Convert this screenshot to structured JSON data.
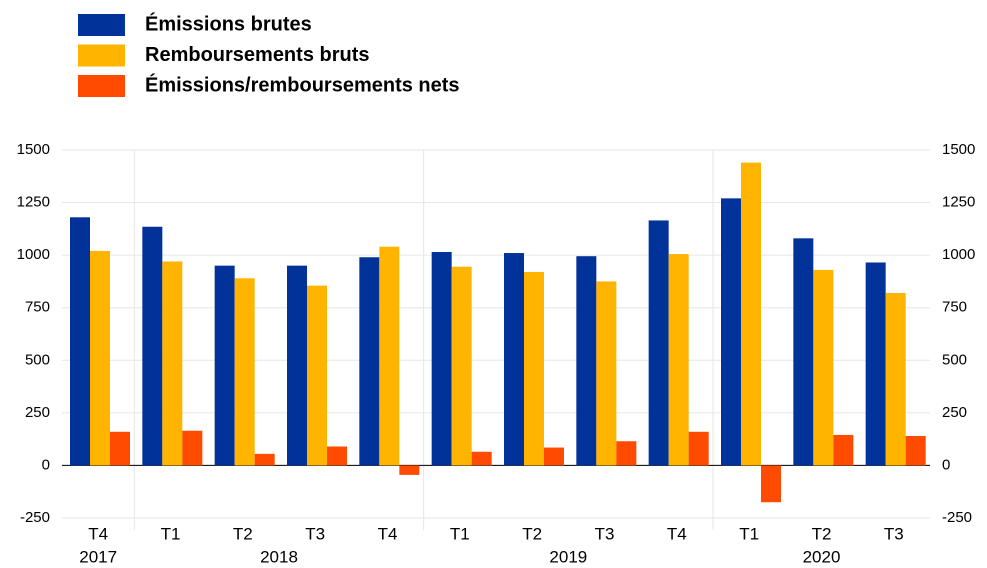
{
  "chart_data": {
    "type": "bar",
    "categories": [
      "T4",
      "T1",
      "T2",
      "T3",
      "T4",
      "T1",
      "T2",
      "T3",
      "T4",
      "T1",
      "T2",
      "T3"
    ],
    "years": [
      "2017",
      "2018",
      "2019",
      "2020"
    ],
    "series": [
      {
        "name": "Émissions brutes",
        "color": "#003299",
        "values": [
          1180,
          1135,
          950,
          950,
          990,
          1015,
          1010,
          995,
          1165,
          1270,
          1080,
          965
        ]
      },
      {
        "name": "Remboursements bruts",
        "color": "#ffb400",
        "values": [
          1020,
          970,
          890,
          855,
          1040,
          945,
          920,
          875,
          1005,
          1440,
          930,
          820
        ]
      },
      {
        "name": "Émissions/remboursements nets",
        "color": "#ff4b00",
        "values": [
          160,
          165,
          55,
          90,
          -45,
          65,
          85,
          115,
          160,
          -175,
          145,
          140
        ]
      }
    ],
    "ylim": [
      -250,
      1500
    ],
    "yticks": [
      -250,
      0,
      250,
      500,
      750,
      1000,
      1250,
      1500
    ],
    "y2lim": [
      -250,
      1500
    ],
    "y2ticks": [
      -250,
      0,
      250,
      500,
      750,
      1000,
      1250,
      1500
    ],
    "grid": true,
    "legend": "top-left"
  }
}
